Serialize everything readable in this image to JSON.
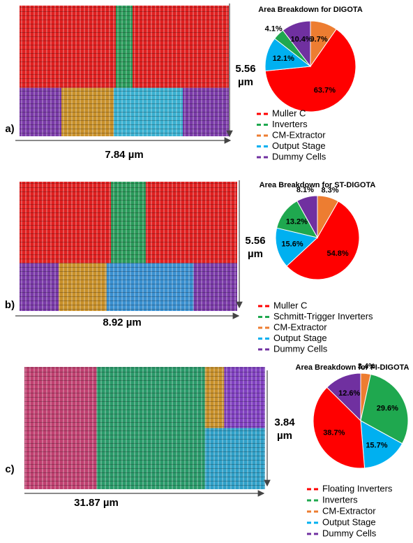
{
  "chart_data": [
    {
      "type": "pie",
      "title": "Area Breakdown for DIGOTA",
      "panel_label": "a)",
      "width_label": "7.84 µm",
      "height_label": [
        "5.56",
        "µm"
      ],
      "categories": [
        "Muller C",
        "Inverters",
        "CM-Extractor",
        "Output Stage",
        "Dummy Cells"
      ],
      "values": [
        63.7,
        4.1,
        9.7,
        12.1,
        10.4
      ],
      "value_labels": [
        "63.7%",
        "4.1%",
        "9.7%",
        "12.1%",
        "10.4%"
      ],
      "colors": [
        "#ff0000",
        "#1fa84f",
        "#ed7d31",
        "#00b0f0",
        "#7030a0"
      ],
      "draw_order": [
        2,
        0,
        3,
        1,
        4
      ]
    },
    {
      "type": "pie",
      "title": "Area Breakdown for ST-DIGOTA",
      "panel_label": "b)",
      "width_label": "8.92 µm",
      "height_label": [
        "5.56",
        "µm"
      ],
      "categories": [
        "Muller C",
        "Schmitt-Trigger Inverters",
        "CM-Extractor",
        "Output Stage",
        "Dummy Cells"
      ],
      "values": [
        54.8,
        13.2,
        8.3,
        15.6,
        8.1
      ],
      "value_labels": [
        "54.8%",
        "13.2%",
        "8.3%",
        "15.6%",
        "8.1%"
      ],
      "colors": [
        "#ff0000",
        "#1fa84f",
        "#ed7d31",
        "#00b0f0",
        "#7030a0"
      ],
      "draw_order": [
        2,
        0,
        3,
        1,
        4
      ]
    },
    {
      "type": "pie",
      "title": "Area Breakdown for FI-DIGOTA",
      "panel_label": "c)",
      "width_label": "31.87 µm",
      "height_label": [
        "3.84",
        "µm"
      ],
      "categories": [
        "Floating Inverters",
        "Inverters",
        "CM-Extractor",
        "Output Stage",
        "Dummy Cells"
      ],
      "values": [
        38.7,
        29.6,
        3.4,
        15.7,
        12.6
      ],
      "value_labels": [
        "38.7%",
        "29.6%",
        "3.4%",
        "15.7%",
        "12.6%"
      ],
      "colors": [
        "#ff0000",
        "#1fa84f",
        "#ed7d31",
        "#00b0f0",
        "#7030a0"
      ],
      "draw_order": [
        2,
        1,
        3,
        0,
        4
      ]
    }
  ]
}
